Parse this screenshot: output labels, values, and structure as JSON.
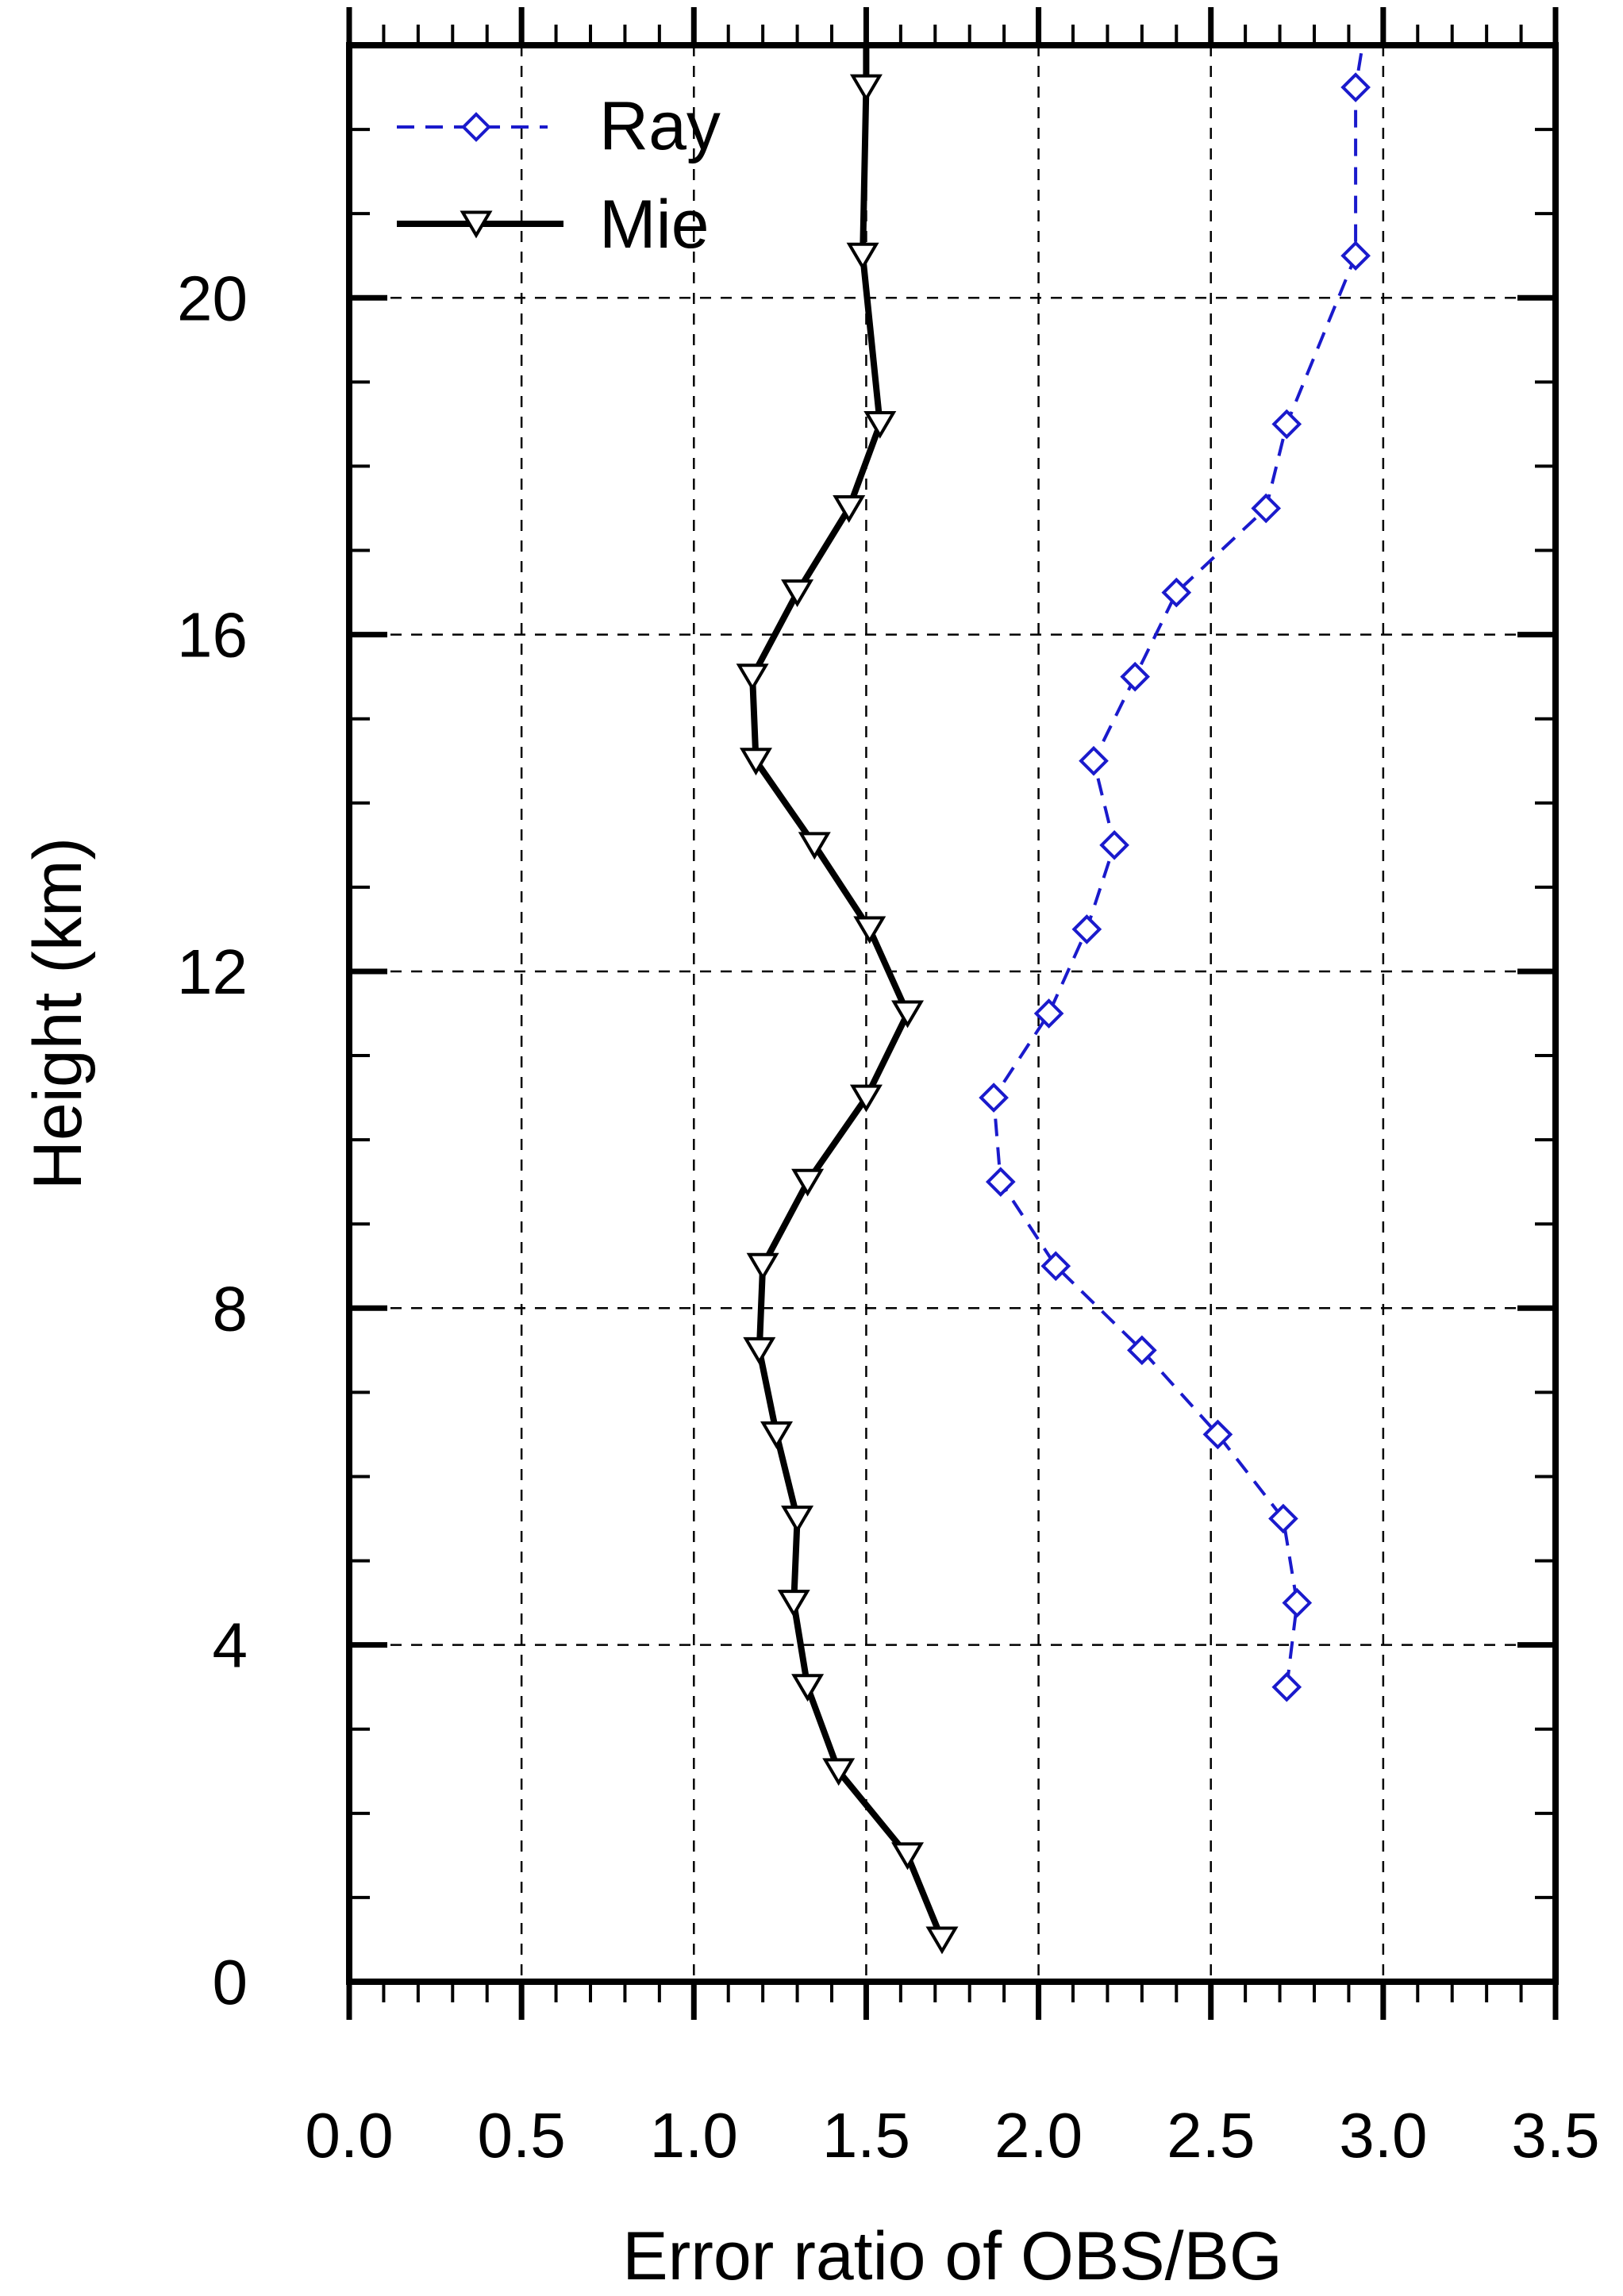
{
  "chart_data": {
    "type": "line",
    "xlabel": "Error ratio of OBS/BG",
    "ylabel": "Height (km)",
    "xlim": [
      0.0,
      3.5
    ],
    "ylim": [
      0,
      23
    ],
    "x_ticks": [
      "0.0",
      "0.5",
      "1.0",
      "1.5",
      "2.0",
      "2.5",
      "3.0",
      "3.5"
    ],
    "y_ticks": [
      "0",
      "4",
      "8",
      "12",
      "16",
      "20"
    ],
    "grid": true,
    "legend_position": "top-left",
    "series": [
      {
        "name": "Ray",
        "color": "#1a1acc",
        "line_style": "dashed",
        "marker": "diamond",
        "points": [
          {
            "x": 2.72,
            "y": 3.5
          },
          {
            "x": 2.75,
            "y": 4.5
          },
          {
            "x": 2.71,
            "y": 5.5
          },
          {
            "x": 2.52,
            "y": 6.5
          },
          {
            "x": 2.3,
            "y": 7.5
          },
          {
            "x": 2.05,
            "y": 8.5
          },
          {
            "x": 1.89,
            "y": 9.5
          },
          {
            "x": 1.87,
            "y": 10.5
          },
          {
            "x": 2.03,
            "y": 11.5
          },
          {
            "x": 2.14,
            "y": 12.5
          },
          {
            "x": 2.22,
            "y": 13.5
          },
          {
            "x": 2.16,
            "y": 14.5
          },
          {
            "x": 2.28,
            "y": 15.5
          },
          {
            "x": 2.4,
            "y": 16.5
          },
          {
            "x": 2.66,
            "y": 17.5
          },
          {
            "x": 2.72,
            "y": 18.5
          },
          {
            "x": 2.92,
            "y": 20.5
          },
          {
            "x": 2.92,
            "y": 22.5
          }
        ],
        "line_extension_top": {
          "x": 2.94,
          "y": 23.0
        }
      },
      {
        "name": "Mie",
        "color": "#000000",
        "line_style": "solid",
        "marker": "triangle-down",
        "points": [
          {
            "x": 1.72,
            "y": 0.5
          },
          {
            "x": 1.62,
            "y": 1.5
          },
          {
            "x": 1.42,
            "y": 2.5
          },
          {
            "x": 1.33,
            "y": 3.5
          },
          {
            "x": 1.29,
            "y": 4.5
          },
          {
            "x": 1.3,
            "y": 5.5
          },
          {
            "x": 1.24,
            "y": 6.5
          },
          {
            "x": 1.19,
            "y": 7.5
          },
          {
            "x": 1.2,
            "y": 8.5
          },
          {
            "x": 1.33,
            "y": 9.5
          },
          {
            "x": 1.5,
            "y": 10.5
          },
          {
            "x": 1.62,
            "y": 11.5
          },
          {
            "x": 1.51,
            "y": 12.5
          },
          {
            "x": 1.35,
            "y": 13.5
          },
          {
            "x": 1.18,
            "y": 14.5
          },
          {
            "x": 1.17,
            "y": 15.5
          },
          {
            "x": 1.3,
            "y": 16.5
          },
          {
            "x": 1.45,
            "y": 17.5
          },
          {
            "x": 1.54,
            "y": 18.5
          },
          {
            "x": 1.49,
            "y": 20.5
          },
          {
            "x": 1.5,
            "y": 22.5
          }
        ],
        "line_extension_top": {
          "x": 1.5,
          "y": 23.0
        }
      }
    ]
  }
}
